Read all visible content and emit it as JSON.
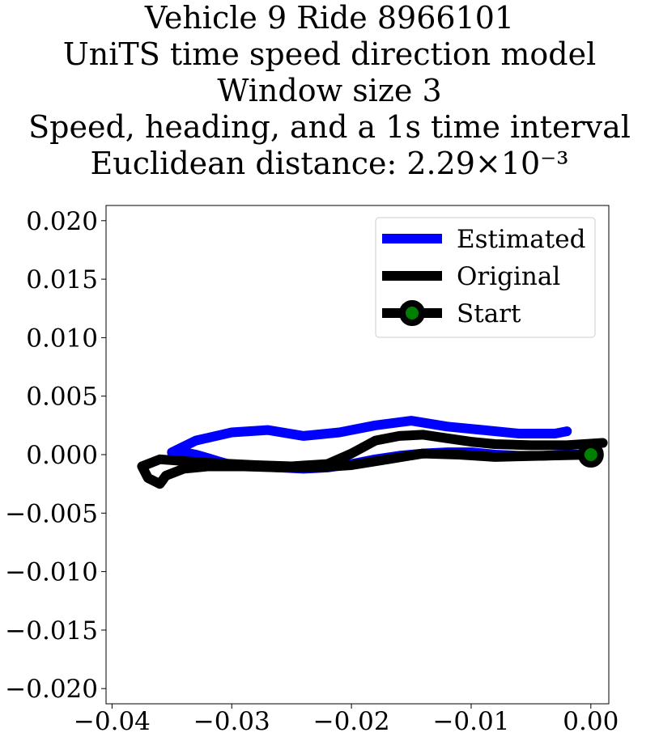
{
  "chart_data": {
    "type": "line",
    "title_lines": [
      "Vehicle 9 Ride 8966101",
      "UniTS time speed direction model",
      "Window size 3",
      "Speed, heading, and a 1s time interval",
      "Euclidean distance: 2.29×10⁻³"
    ],
    "xlabel": "",
    "ylabel": "",
    "xlim": [
      -0.0405,
      0.0015
    ],
    "ylim": [
      -0.0213,
      0.0213
    ],
    "x_ticks": [
      -0.04,
      -0.03,
      -0.02,
      -0.01,
      0.0
    ],
    "x_tick_labels": [
      "−0.04",
      "−0.03",
      "−0.02",
      "−0.01",
      "0.00"
    ],
    "y_ticks": [
      0.02,
      0.015,
      0.01,
      0.005,
      0.0,
      -0.005,
      -0.01,
      -0.015,
      -0.02
    ],
    "y_tick_labels": [
      "0.020",
      "0.015",
      "0.010",
      "0.005",
      "0.000",
      "−0.005",
      "−0.010",
      "−0.015",
      "−0.020"
    ],
    "grid": false,
    "legend_position": "top-right",
    "legend": [
      {
        "label": "Estimated",
        "marker": "none"
      },
      {
        "label": "Original",
        "marker": "none"
      },
      {
        "label": "Start",
        "marker": "circle"
      }
    ],
    "series": [
      {
        "name": "Estimated",
        "color": "#0000ff",
        "x": [
          0.0,
          -0.002,
          -0.004,
          -0.006,
          -0.008,
          -0.01,
          -0.012,
          -0.014,
          -0.016,
          -0.018,
          -0.02,
          -0.022,
          -0.024,
          -0.026,
          -0.028,
          -0.03,
          -0.031,
          -0.032,
          -0.033,
          -0.034,
          -0.035,
          -0.033,
          -0.03,
          -0.027,
          -0.024,
          -0.021,
          -0.018,
          -0.015,
          -0.012,
          -0.009,
          -0.006,
          -0.003,
          -0.002
        ],
        "y": [
          0.0,
          0.0,
          -0.0001,
          -0.0001,
          0.0,
          0.0002,
          0.0002,
          0.0001,
          -0.0001,
          -0.0004,
          -0.0008,
          -0.0011,
          -0.0012,
          -0.0011,
          -0.001,
          -0.0009,
          -0.0006,
          -0.0003,
          0.0,
          0.0002,
          0.0002,
          0.0012,
          0.0019,
          0.0021,
          0.0016,
          0.0019,
          0.0025,
          0.0029,
          0.0024,
          0.0021,
          0.0018,
          0.0018,
          0.002
        ]
      },
      {
        "name": "Original",
        "color": "#000000",
        "x": [
          0.0,
          -0.004,
          -0.008,
          -0.011,
          -0.014,
          -0.017,
          -0.02,
          -0.023,
          -0.026,
          -0.029,
          -0.032,
          -0.034,
          -0.0355,
          -0.036,
          -0.037,
          -0.0375,
          -0.036,
          -0.032,
          -0.028,
          -0.025,
          -0.022,
          -0.02,
          -0.018,
          -0.016,
          -0.014,
          -0.012,
          -0.01,
          -0.008,
          -0.005,
          -0.002,
          0.001
        ],
        "y": [
          0.0,
          -0.0001,
          -0.0002,
          0.0,
          0.0001,
          -0.0004,
          -0.0009,
          -0.0011,
          -0.0011,
          -0.001,
          -0.001,
          -0.0012,
          -0.0018,
          -0.0025,
          -0.002,
          -0.001,
          -0.0004,
          -0.0007,
          -0.0009,
          -0.001,
          -0.0008,
          0.0001,
          0.0012,
          0.0016,
          0.0017,
          0.0014,
          0.0011,
          0.0009,
          0.0008,
          0.0008,
          0.001
        ]
      }
    ],
    "start_point": {
      "x": 0.0,
      "y": 0.0,
      "edge_color": "#000000",
      "face_color": "#008000"
    }
  }
}
